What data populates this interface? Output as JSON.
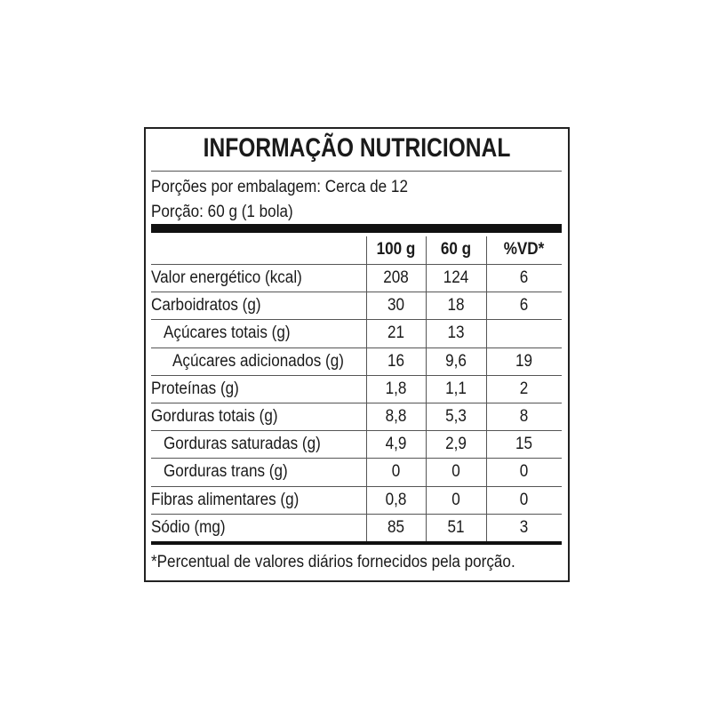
{
  "header": {
    "title": "INFORMAÇÃO NUTRICIONAL",
    "servings": "Porções por embalagem: Cerca de 12",
    "portion": "Porção: 60 g (1 bola)"
  },
  "table": {
    "columns": [
      "100 g",
      "60 g",
      "%VD*"
    ],
    "rows": [
      {
        "label": "Valor energético (kcal)",
        "values": [
          "208",
          "124",
          "6"
        ]
      },
      {
        "label": "Carboidratos (g)",
        "values": [
          "30",
          "18",
          "6"
        ]
      },
      {
        "label": "Açúcares totais (g)",
        "values": [
          "21",
          "13",
          null
        ]
      },
      {
        "label": "Açúcares adicionados (g)",
        "values": [
          "16",
          "9,6",
          "19"
        ]
      },
      {
        "label": "Proteínas (g)",
        "values": [
          "1,8",
          "1,1",
          "2"
        ]
      },
      {
        "label": "Gorduras totais (g)",
        "values": [
          "8,8",
          "5,3",
          "8"
        ]
      },
      {
        "label": "Gorduras saturadas (g)",
        "values": [
          "4,9",
          "2,9",
          "15"
        ]
      },
      {
        "label": "Gorduras trans (g)",
        "values": [
          "0",
          "0",
          "0"
        ]
      },
      {
        "label": "Fibras alimentares (g)",
        "values": [
          "0,8",
          "0",
          "0"
        ]
      },
      {
        "label": "Sódio (mg)",
        "values": [
          "85",
          "51",
          "3"
        ]
      }
    ]
  },
  "footnote": "*Percentual de valores diários fornecidos pela porção."
}
